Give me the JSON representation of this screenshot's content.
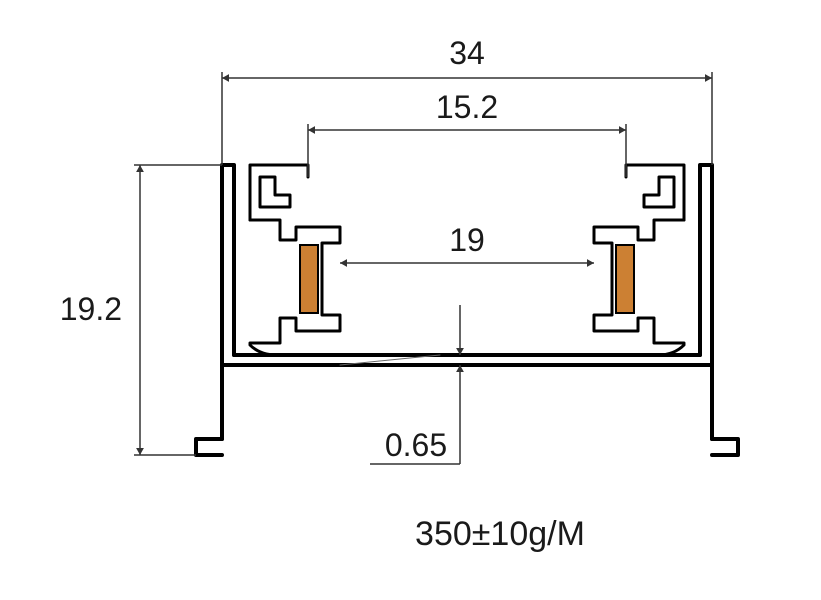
{
  "dimensions": {
    "outer_width": "34",
    "inner_top_width": "15.2",
    "inner_mid_width": "19",
    "height": "19.2",
    "platform_thickness": "0.65"
  },
  "weight": "350±10g/M",
  "colors": {
    "profile_stroke": "#000000",
    "profile_fill": "#ffffff",
    "copper": "#cc8033",
    "dim_line": "#333333",
    "text": "#1a1a1a",
    "bg": "#ffffff"
  },
  "stroke_widths": {
    "profile": 4,
    "dim": 1.5
  }
}
